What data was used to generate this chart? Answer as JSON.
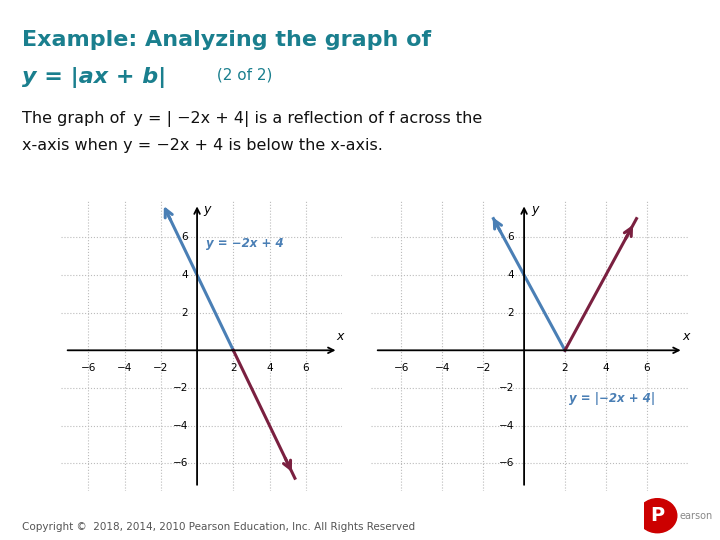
{
  "bg_color": "#ffffff",
  "title_color": "#1a7f8e",
  "label_color": "#4a90b8",
  "line_color_blue": "#4a7fb5",
  "line_color_red": "#7a2040",
  "grid_color": "#bbbbbb",
  "copyright": "Copyright ©  2018, 2014, 2010 Pearson Education, Inc. All Rights Reserved",
  "xlim": [
    -7.5,
    8.0
  ],
  "ylim": [
    -7.5,
    8.0
  ],
  "xticks": [
    -6,
    -4,
    -2,
    2,
    4,
    6
  ],
  "yticks": [
    -6,
    -4,
    -2,
    2,
    4,
    6
  ]
}
